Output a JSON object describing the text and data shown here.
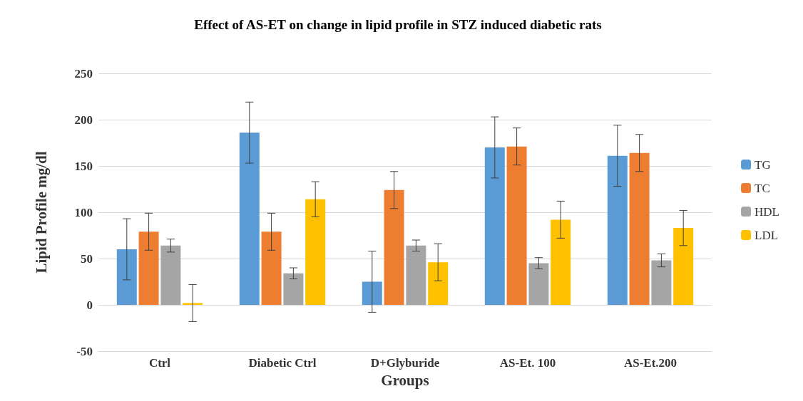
{
  "chart_data": {
    "type": "bar",
    "title": "Effect of AS-ET on change in lipid profile in STZ induced diabetic rats",
    "xlabel": "Groups",
    "ylabel": "Lipid Profile mg/dl",
    "categories": [
      "Ctrl",
      "Diabetic Ctrl",
      "D+Glyburide",
      "AS-Et. 100",
      "AS-Et.200"
    ],
    "series": [
      {
        "name": "TG",
        "color": "#5b9bd5",
        "values": [
          60,
          186,
          25,
          170,
          161
        ],
        "errors": [
          33,
          33,
          33,
          33,
          33
        ]
      },
      {
        "name": "TC",
        "color": "#ed7d31",
        "values": [
          79,
          79,
          124,
          171,
          164
        ],
        "errors": [
          20,
          20,
          20,
          20,
          20
        ]
      },
      {
        "name": "HDL",
        "color": "#a5a5a5",
        "values": [
          64,
          34,
          64,
          45,
          48
        ],
        "errors": [
          7,
          6,
          6,
          6,
          7
        ]
      },
      {
        "name": "LDL",
        "color": "#ffc000",
        "values": [
          2,
          114,
          46,
          92,
          83
        ],
        "errors": [
          20,
          19,
          20,
          20,
          19
        ]
      }
    ],
    "ylim": [
      -50,
      250
    ],
    "yticks": [
      -50,
      0,
      50,
      100,
      150,
      200,
      250
    ],
    "grid": "y",
    "legend": "right"
  }
}
